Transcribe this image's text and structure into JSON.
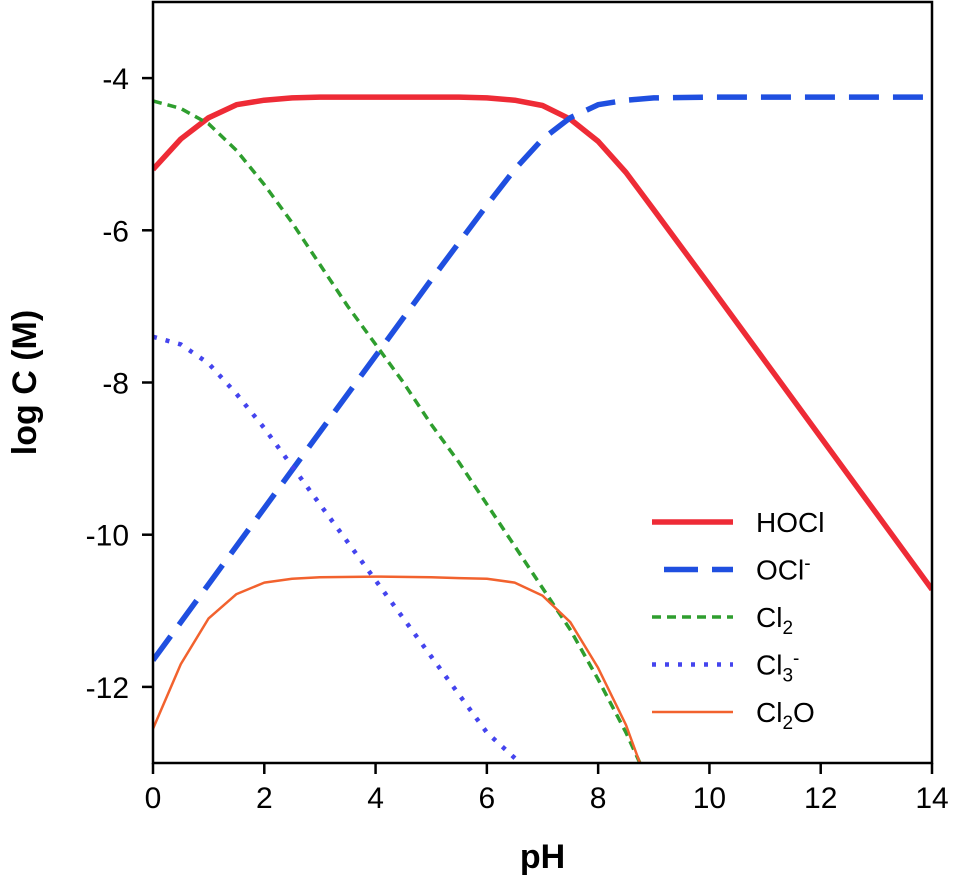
{
  "chart_data": {
    "type": "line",
    "title": "",
    "xlabel": "pH",
    "ylabel": "log C (M)",
    "xlim": [
      0,
      14
    ],
    "ylim": [
      -13,
      -3
    ],
    "xticks": [
      0,
      2,
      4,
      6,
      8,
      10,
      12,
      14
    ],
    "yticks": [
      -4,
      -6,
      -8,
      -10,
      -12
    ],
    "grid": false,
    "legend_placement": "bottom-right",
    "series": [
      {
        "name": "HOCl",
        "label_base": "HOCl",
        "label_sub": "",
        "label_sup": "",
        "color": "#ee2b36",
        "style": "solid-thick",
        "x": [
          0,
          0.5,
          1,
          1.5,
          2,
          2.5,
          3,
          4,
          5,
          5.5,
          6,
          6.5,
          7,
          7.5,
          8,
          8.5,
          9,
          10,
          11,
          12,
          13,
          14
        ],
        "y": [
          -5.2,
          -4.8,
          -4.52,
          -4.35,
          -4.29,
          -4.26,
          -4.25,
          -4.25,
          -4.25,
          -4.25,
          -4.26,
          -4.29,
          -4.36,
          -4.54,
          -4.83,
          -5.24,
          -5.73,
          -6.72,
          -7.72,
          -8.72,
          -9.72,
          -10.72
        ]
      },
      {
        "name": "OCl-",
        "label_base": "OCl",
        "label_sub": "",
        "label_sup": "-",
        "color": "#1f4fe0",
        "style": "long-dash",
        "x": [
          0,
          1,
          2,
          3,
          4,
          5,
          6,
          6.5,
          7,
          7.5,
          8,
          8.5,
          9,
          10,
          11,
          12,
          13,
          14
        ],
        "y": [
          -11.65,
          -10.65,
          -9.65,
          -8.65,
          -7.65,
          -6.65,
          -5.67,
          -5.2,
          -4.8,
          -4.52,
          -4.35,
          -4.29,
          -4.26,
          -4.25,
          -4.25,
          -4.25,
          -4.25,
          -4.25
        ]
      },
      {
        "name": "Cl2",
        "label_base": "Cl",
        "label_sub": "2",
        "label_sup": "",
        "color": "#2e9e2e",
        "style": "dash",
        "x": [
          0,
          0.5,
          1,
          1.5,
          2,
          2.5,
          3,
          3.5,
          4,
          4.5,
          5,
          5.5,
          6,
          6.5,
          7,
          7.5,
          8,
          8.5,
          8.75
        ],
        "y": [
          -4.3,
          -4.4,
          -4.6,
          -4.95,
          -5.4,
          -5.9,
          -6.45,
          -7.0,
          -7.5,
          -8.0,
          -8.55,
          -9.05,
          -9.6,
          -10.15,
          -10.7,
          -11.25,
          -11.9,
          -12.6,
          -13.0
        ]
      },
      {
        "name": "Cl3-",
        "label_base": "Cl",
        "label_sub": "3",
        "label_sup": "-",
        "color": "#4444ee",
        "style": "dot",
        "x": [
          0,
          0.5,
          1,
          1.5,
          2,
          2.5,
          3,
          3.5,
          4,
          4.5,
          5,
          5.5,
          6,
          6.6
        ],
        "y": [
          -7.4,
          -7.5,
          -7.75,
          -8.15,
          -8.6,
          -9.1,
          -9.6,
          -10.1,
          -10.6,
          -11.1,
          -11.6,
          -12.1,
          -12.6,
          -13.0
        ]
      },
      {
        "name": "Cl2O",
        "label_base": "Cl",
        "label_sub": "2",
        "label_sup": "",
        "label_tail": "O",
        "color": "#f2622e",
        "style": "solid-thin",
        "x": [
          0,
          0.5,
          1,
          1.5,
          2,
          2.5,
          3,
          4,
          5,
          5.5,
          6,
          6.5,
          7,
          7.5,
          8,
          8.5,
          8.75
        ],
        "y": [
          -12.55,
          -11.7,
          -11.1,
          -10.78,
          -10.63,
          -10.58,
          -10.56,
          -10.55,
          -10.56,
          -10.57,
          -10.58,
          -10.63,
          -10.8,
          -11.15,
          -11.75,
          -12.5,
          -13.0
        ]
      }
    ]
  }
}
